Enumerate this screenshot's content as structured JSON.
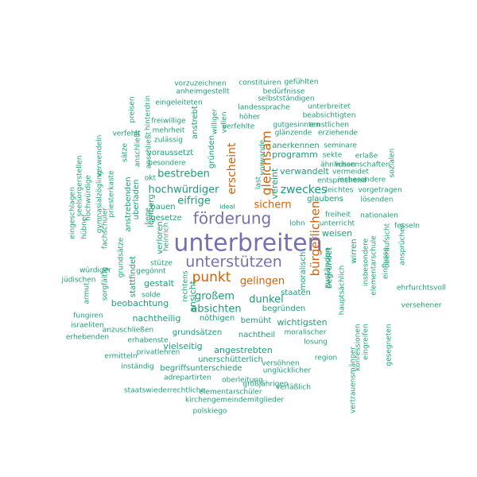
{
  "colors": {
    "primary": "#7570b3",
    "secondary": "#d95f02",
    "tertiary": "#1b9e77"
  },
  "words": [
    {
      "text": "unterbreiten",
      "color": "primary"
    },
    {
      "text": "förderung",
      "color": "primary"
    },
    {
      "text": "unterstützen",
      "color": "primary"
    },
    {
      "text": "gleichsam",
      "color": "secondary"
    },
    {
      "text": "erscheint",
      "color": "secondary"
    },
    {
      "text": "bürgerlichen",
      "color": "secondary"
    },
    {
      "text": "punkt",
      "color": "secondary"
    },
    {
      "text": "sichern",
      "color": "secondary"
    },
    {
      "text": "gelingen",
      "color": "secondary"
    },
    {
      "text": "zweckes",
      "color": "tertiary"
    },
    {
      "text": "hochwürdiger",
      "color": "tertiary"
    },
    {
      "text": "bestreben",
      "color": "tertiary"
    },
    {
      "text": "eifrige",
      "color": "tertiary"
    },
    {
      "text": "großem",
      "color": "tertiary"
    },
    {
      "text": "dunkel",
      "color": "tertiary"
    },
    {
      "text": "absichten",
      "color": "tertiary"
    },
    {
      "text": "vereint",
      "color": "tertiary"
    },
    {
      "text": "ansicht",
      "color": "tertiary"
    },
    {
      "text": "vorzuzeichnen",
      "color": "tertiary"
    },
    {
      "text": "constituiren",
      "color": "tertiary"
    },
    {
      "text": "gefühlten",
      "color": "tertiary"
    },
    {
      "text": "anheimgestellt",
      "color": "tertiary"
    },
    {
      "text": "bedürfnisse",
      "color": "tertiary"
    },
    {
      "text": "selbstständigen",
      "color": "tertiary"
    },
    {
      "text": "eingeleiteten",
      "color": "tertiary"
    },
    {
      "text": "landessprache",
      "color": "tertiary"
    },
    {
      "text": "unterbreitet",
      "color": "tertiary"
    },
    {
      "text": "beabsichtigten",
      "color": "tertiary"
    },
    {
      "text": "ernstlichen",
      "color": "tertiary"
    },
    {
      "text": "gutgesinnten",
      "color": "tertiary"
    },
    {
      "text": "glänzende",
      "color": "tertiary"
    },
    {
      "text": "erziehende",
      "color": "tertiary"
    },
    {
      "text": "höher",
      "color": "tertiary"
    },
    {
      "text": "verfehlte",
      "color": "tertiary"
    },
    {
      "text": "freiwillige",
      "color": "tertiary"
    },
    {
      "text": "mehrheit",
      "color": "tertiary"
    },
    {
      "text": "zulässig",
      "color": "tertiary"
    },
    {
      "text": "verfehlt",
      "color": "tertiary"
    },
    {
      "text": "voraussetzt",
      "color": "tertiary"
    },
    {
      "text": "besondere",
      "color": "tertiary"
    },
    {
      "text": "okt",
      "color": "tertiary"
    },
    {
      "text": "programm",
      "color": "tertiary"
    },
    {
      "text": "anerkennen",
      "color": "tertiary"
    },
    {
      "text": "seminare",
      "color": "tertiary"
    },
    {
      "text": "sekte",
      "color": "tertiary"
    },
    {
      "text": "erlaße",
      "color": "tertiary"
    },
    {
      "text": "ähnlichen",
      "color": "tertiary"
    },
    {
      "text": "verwandelt",
      "color": "tertiary"
    },
    {
      "text": "vermeidet",
      "color": "tertiary"
    },
    {
      "text": "insbesondere",
      "color": "tertiary"
    },
    {
      "text": "wissenschaften",
      "color": "tertiary"
    },
    {
      "text": "entsprechend",
      "color": "tertiary"
    },
    {
      "text": "leichtes",
      "color": "tertiary"
    },
    {
      "text": "vorgetragen",
      "color": "tertiary"
    },
    {
      "text": "glaubens",
      "color": "tertiary"
    },
    {
      "text": "lösenden",
      "color": "tertiary"
    },
    {
      "text": "bauen",
      "color": "tertiary"
    },
    {
      "text": "gesetze",
      "color": "tertiary"
    },
    {
      "text": "lemberg",
      "color": "tertiary"
    },
    {
      "text": "freiheit",
      "color": "tertiary"
    },
    {
      "text": "nationalen",
      "color": "tertiary"
    },
    {
      "text": "unterricht",
      "color": "tertiary"
    },
    {
      "text": "fesseln",
      "color": "tertiary"
    },
    {
      "text": "weisen",
      "color": "tertiary"
    },
    {
      "text": "lohn",
      "color": "tertiary"
    },
    {
      "text": "ideal",
      "color": "tertiary"
    },
    {
      "text": "stütze",
      "color": "tertiary"
    },
    {
      "text": "würdiger",
      "color": "tertiary"
    },
    {
      "text": "jüdischen",
      "color": "tertiary"
    },
    {
      "text": "gegönnt",
      "color": "tertiary"
    },
    {
      "text": "gestalt",
      "color": "tertiary"
    },
    {
      "text": "solde",
      "color": "tertiary"
    },
    {
      "text": "beobachtung",
      "color": "tertiary"
    },
    {
      "text": "begründen",
      "color": "tertiary"
    },
    {
      "text": "staaten",
      "color": "tertiary"
    },
    {
      "text": "nachtheilig",
      "color": "tertiary"
    },
    {
      "text": "nöthigen",
      "color": "tertiary"
    },
    {
      "text": "bemüht",
      "color": "tertiary"
    },
    {
      "text": "wichtigsten",
      "color": "tertiary"
    },
    {
      "text": "ehrfurchtsvoll",
      "color": "tertiary"
    },
    {
      "text": "versehener",
      "color": "tertiary"
    },
    {
      "text": "fungiren",
      "color": "tertiary"
    },
    {
      "text": "israeliten",
      "color": "tertiary"
    },
    {
      "text": "anzuschließen",
      "color": "tertiary"
    },
    {
      "text": "grundsätzen",
      "color": "tertiary"
    },
    {
      "text": "nachtheil",
      "color": "tertiary"
    },
    {
      "text": "moralischer",
      "color": "tertiary"
    },
    {
      "text": "erhebenden",
      "color": "tertiary"
    },
    {
      "text": "erhabenste",
      "color": "tertiary"
    },
    {
      "text": "vielseitig",
      "color": "tertiary"
    },
    {
      "text": "angestrebten",
      "color": "tertiary"
    },
    {
      "text": "losung",
      "color": "tertiary"
    },
    {
      "text": "ermitteln",
      "color": "tertiary"
    },
    {
      "text": "privatlehren",
      "color": "tertiary"
    },
    {
      "text": "unerschütterlich",
      "color": "tertiary"
    },
    {
      "text": "region",
      "color": "tertiary"
    },
    {
      "text": "inständig",
      "color": "tertiary"
    },
    {
      "text": "versöhnen",
      "color": "tertiary"
    },
    {
      "text": "begriffsunterschiede",
      "color": "tertiary"
    },
    {
      "text": "unglücklicher",
      "color": "tertiary"
    },
    {
      "text": "adrepartirten",
      "color": "tertiary"
    },
    {
      "text": "oberleitung",
      "color": "tertiary"
    },
    {
      "text": "großjährigen",
      "color": "tertiary"
    },
    {
      "text": "staatswiederrechtliche",
      "color": "tertiary"
    },
    {
      "text": "elementarschüler",
      "color": "tertiary"
    },
    {
      "text": "verläßlich",
      "color": "tertiary"
    },
    {
      "text": "kirchengemeindemitglieder",
      "color": "tertiary"
    },
    {
      "text": "polskiego",
      "color": "tertiary"
    },
    {
      "text": "preisen",
      "color": "tertiary"
    },
    {
      "text": "hinterdrin",
      "color": "tertiary"
    },
    {
      "text": "williger",
      "color": "tertiary"
    },
    {
      "text": "vollen",
      "color": "tertiary"
    },
    {
      "text": "anstrebt",
      "color": "tertiary"
    },
    {
      "text": "gründen",
      "color": "tertiary"
    },
    {
      "text": "vorwande",
      "color": "tertiary"
    },
    {
      "text": "last",
      "color": "tertiary"
    },
    {
      "text": "anschließt",
      "color": "tertiary"
    },
    {
      "text": "sätze",
      "color": "tertiary"
    },
    {
      "text": "anschließt",
      "color": "tertiary"
    },
    {
      "text": "verwendeln",
      "color": "tertiary"
    },
    {
      "text": "seelsorgerstellen",
      "color": "tertiary"
    },
    {
      "text": "hochwürdige",
      "color": "tertiary"
    },
    {
      "text": "gymnasialzögling",
      "color": "tertiary"
    },
    {
      "text": "priesterkaste",
      "color": "tertiary"
    },
    {
      "text": "eingeschlagen",
      "color": "tertiary"
    },
    {
      "text": "hübner",
      "color": "tertiary"
    },
    {
      "text": "fachschüler",
      "color": "tertiary"
    },
    {
      "text": "anstrebenden",
      "color": "tertiary"
    },
    {
      "text": "uberladen",
      "color": "tertiary"
    },
    {
      "text": "liege",
      "color": "tertiary"
    },
    {
      "text": "heinrich",
      "color": "tertiary"
    },
    {
      "text": "verloren",
      "color": "tertiary"
    },
    {
      "text": "grundsätze",
      "color": "tertiary"
    },
    {
      "text": "sorgfältig",
      "color": "tertiary"
    },
    {
      "text": "armut",
      "color": "tertiary"
    },
    {
      "text": "stattfindet",
      "color": "tertiary"
    },
    {
      "text": "rechtens",
      "color": "tertiary"
    },
    {
      "text": "moralisch",
      "color": "tertiary"
    },
    {
      "text": "begründet",
      "color": "tertiary"
    },
    {
      "text": "zuständen",
      "color": "tertiary"
    },
    {
      "text": "hauptsächlich",
      "color": "tertiary"
    },
    {
      "text": "vertrauensmänner",
      "color": "tertiary"
    },
    {
      "text": "konfessionen",
      "color": "tertiary"
    },
    {
      "text": "wirren",
      "color": "tertiary"
    },
    {
      "text": "insbesondere",
      "color": "tertiary"
    },
    {
      "text": "elementarschule",
      "color": "tertiary"
    },
    {
      "text": "einflusse",
      "color": "tertiary"
    },
    {
      "text": "oberaufsicht",
      "color": "tertiary"
    },
    {
      "text": "eingreifen",
      "color": "tertiary"
    },
    {
      "text": "gesegneten",
      "color": "tertiary"
    },
    {
      "text": "sozialen",
      "color": "tertiary"
    },
    {
      "text": "ansprüchen",
      "color": "tertiary"
    }
  ]
}
